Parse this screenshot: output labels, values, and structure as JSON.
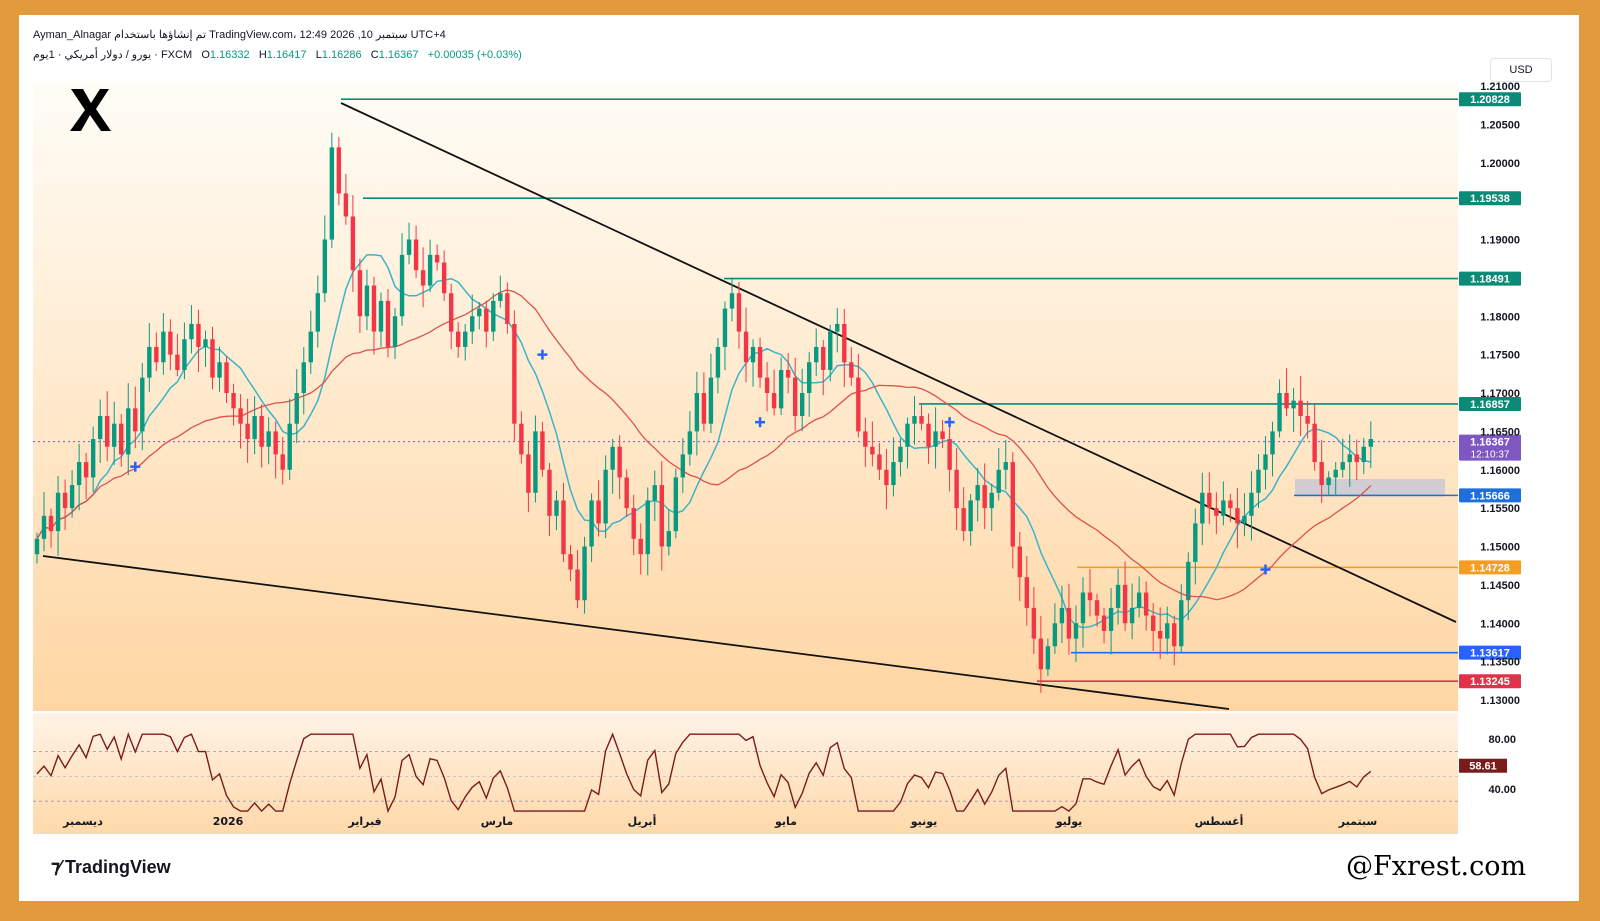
{
  "header": {
    "line1": "Ayman_Alnagar تم إنشاؤها باستخدام TradingView.com، 12:49 2026 ,10 سبتمبر UTC+4",
    "symbol": "يورو / دولار أمريكي · 1يوم · FXCM",
    "open_label": "O",
    "open": "1.16332",
    "high_label": "H",
    "high": "1.16417",
    "low_label": "L",
    "low": "1.16286",
    "close_label": "C",
    "close": "1.16367",
    "change": "+0.00035 (+0.03%)"
  },
  "currency_button": "USD",
  "footer": {
    "brand": "TradingView",
    "watermark": "@Fxrest.com"
  },
  "colors": {
    "up": "#089981",
    "down": "#f23645",
    "teal_line": "#0c8a78",
    "ma_fast": "#3bb3c9",
    "ma_slow": "#e0504d",
    "orange": "#f59d22",
    "blue": "#2962ff",
    "red_level": "#e0334a",
    "purple": "#7e57c2",
    "rsi": "#7a1c1c",
    "bg_top": "#fffdf7",
    "bg_bottom": "#ffd9a8"
  },
  "chart_data": {
    "type": "candlestick",
    "instrument": "يورو / دولار أمريكي",
    "timeframe": "1يوم",
    "y_axis_ticks": [
      "1.21000",
      "1.20500",
      "1.20000",
      "1.19000",
      "1.18000",
      "1.17500",
      "1.17000",
      "1.16500",
      "1.16000",
      "1.15500",
      "1.15000",
      "1.14500",
      "1.14000",
      "1.13500",
      "1.13000"
    ],
    "ylim": [
      1.128,
      1.213
    ],
    "x_axis_labels": [
      "ديسمبر",
      "2026",
      "فبراير",
      "مارس",
      "أبريل",
      "مايو",
      "يونيو",
      "يوليو",
      "أغسطس",
      "سبتمبر"
    ],
    "horizontal_levels": [
      {
        "value": "1.20828",
        "color": "#0c8a78"
      },
      {
        "value": "1.19538",
        "color": "#0c8a78"
      },
      {
        "value": "1.18491",
        "color": "#0c8a78"
      },
      {
        "value": "1.16857",
        "color": "#0c8a78"
      },
      {
        "value": "1.15666",
        "color": "#1e6fd9"
      },
      {
        "value": "1.14728",
        "color": "#f59d22"
      },
      {
        "value": "1.13617",
        "color": "#2962ff"
      },
      {
        "value": "1.13245",
        "color": "#e0334a"
      }
    ],
    "current_price": "1.16367",
    "countdown": "12:10:37",
    "closes": [
      1.151,
      1.154,
      1.152,
      1.157,
      1.155,
      1.158,
      1.161,
      1.159,
      1.164,
      1.167,
      1.163,
      1.166,
      1.162,
      1.168,
      1.165,
      1.172,
      1.176,
      1.174,
      1.178,
      1.175,
      1.173,
      1.177,
      1.179,
      1.176,
      1.177,
      1.172,
      1.174,
      1.17,
      1.168,
      1.166,
      1.164,
      1.167,
      1.163,
      1.165,
      1.162,
      1.16,
      1.166,
      1.17,
      1.174,
      1.178,
      1.183,
      1.19,
      1.202,
      1.196,
      1.193,
      1.186,
      1.18,
      1.184,
      1.178,
      1.182,
      1.176,
      1.18,
      1.188,
      1.19,
      1.186,
      1.184,
      1.188,
      1.187,
      1.183,
      1.178,
      1.176,
      1.178,
      1.18,
      1.181,
      1.178,
      1.182,
      1.183,
      1.179,
      1.166,
      1.162,
      1.157,
      1.165,
      1.16,
      1.154,
      1.156,
      1.149,
      1.147,
      1.143,
      1.15,
      1.156,
      1.153,
      1.16,
      1.163,
      1.159,
      1.155,
      1.151,
      1.149,
      1.156,
      1.158,
      1.15,
      1.152,
      1.159,
      1.162,
      1.165,
      1.17,
      1.166,
      1.172,
      1.176,
      1.181,
      1.183,
      1.178,
      1.174,
      1.176,
      1.172,
      1.17,
      1.168,
      1.173,
      1.172,
      1.167,
      1.17,
      1.174,
      1.176,
      1.173,
      1.178,
      1.179,
      1.174,
      1.172,
      1.165,
      1.163,
      1.162,
      1.16,
      1.158,
      1.161,
      1.163,
      1.166,
      1.167,
      1.166,
      1.163,
      1.165,
      1.164,
      1.16,
      1.155,
      1.152,
      1.156,
      1.158,
      1.155,
      1.157,
      1.16,
      1.161,
      1.15,
      1.146,
      1.142,
      1.138,
      1.134,
      1.137,
      1.14,
      1.142,
      1.138,
      1.14,
      1.144,
      1.143,
      1.141,
      1.139,
      1.142,
      1.145,
      1.14,
      1.142,
      1.144,
      1.141,
      1.139,
      1.138,
      1.14,
      1.137,
      1.143,
      1.148,
      1.153,
      1.157,
      1.155,
      1.154,
      1.156,
      1.155,
      1.153,
      1.154,
      1.157,
      1.16,
      1.162,
      1.165,
      1.17,
      1.168,
      1.169,
      1.167,
      1.166,
      1.161,
      1.158,
      1.159,
      1.16,
      1.161,
      1.162,
      1.161,
      1.163,
      1.164
    ],
    "rsi": {
      "levels": [
        "80.00",
        "40.00"
      ],
      "value": "58.61"
    }
  }
}
